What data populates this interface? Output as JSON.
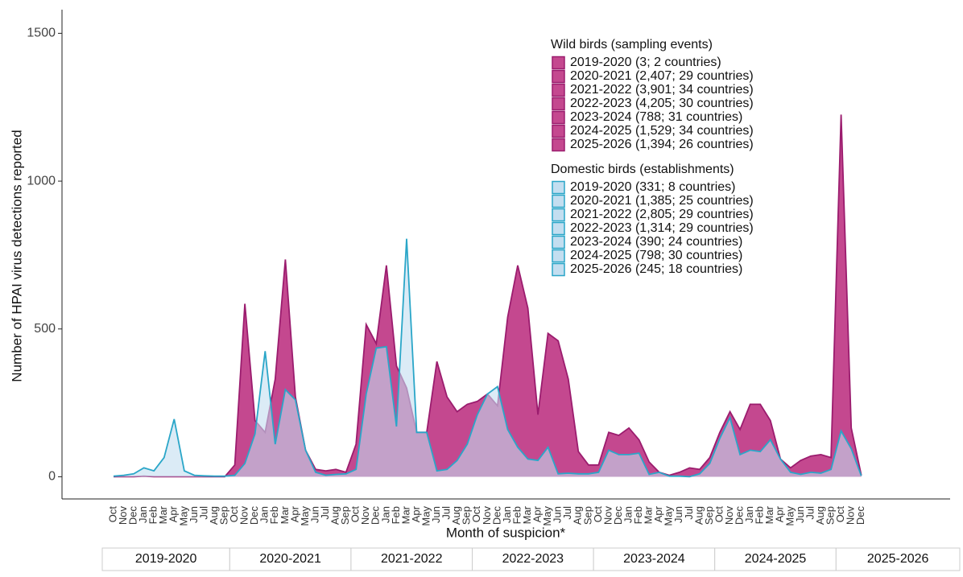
{
  "chart_data": {
    "type": "area",
    "x_label": "Month of suspicion*",
    "y_label": "Number of HPAI virus detections reported",
    "categories": [
      "Oct",
      "Nov",
      "Dec",
      "Jan",
      "Feb",
      "Mar",
      "Apr",
      "May",
      "Jun",
      "Jul",
      "Aug",
      "Sep",
      "Oct",
      "Nov",
      "Dec",
      "Jan",
      "Feb",
      "Mar",
      "Apr",
      "May",
      "Jun",
      "Jul",
      "Aug",
      "Sep",
      "Oct",
      "Nov",
      "Dec",
      "Jan",
      "Feb",
      "Mar",
      "Apr",
      "May",
      "Jun",
      "Jul",
      "Aug",
      "Sep",
      "Oct",
      "Nov",
      "Dec",
      "Jan",
      "Feb",
      "Mar",
      "Apr",
      "May",
      "Jun",
      "Jul",
      "Aug",
      "Sep",
      "Oct",
      "Nov",
      "Dec",
      "Jan",
      "Feb",
      "Mar",
      "Apr",
      "May",
      "Jun",
      "Jul",
      "Aug",
      "Sep",
      "Oct",
      "Nov",
      "Dec",
      "Jan",
      "Feb",
      "Mar",
      "Apr",
      "May",
      "Jun",
      "Jul",
      "Aug",
      "Sep",
      "Oct",
      "Nov",
      "Dec"
    ],
    "seasons": [
      "2019-2020",
      "2020-2021",
      "2021-2022",
      "2022-2023",
      "2023-2024",
      "2024-2025",
      "2025-2026"
    ],
    "ylim": [
      -75,
      1580
    ],
    "yticks": [
      0,
      500,
      1000,
      1500
    ],
    "series": [
      {
        "name": "Wild birds (sampling events)",
        "color": "#c4488f",
        "stroke": "#9b1c6e",
        "legend_entries": [
          "2019-2020 (3; 2 countries)",
          "2020-2021 (2,407; 29 countries)",
          "2021-2022 (3,901; 34 countries)",
          "2022-2023 (4,205; 30 countries)",
          "2023-2024 (788; 31 countries)",
          "2024-2025 (1,529; 34 countries)",
          "2025-2026 (1,394; 26 countries)"
        ],
        "values": [
          0,
          0,
          0,
          2,
          0,
          0,
          0,
          0,
          0,
          0,
          0,
          0,
          40,
          585,
          190,
          150,
          330,
          735,
          270,
          90,
          25,
          20,
          25,
          15,
          110,
          515,
          450,
          715,
          375,
          300,
          150,
          150,
          390,
          270,
          220,
          245,
          255,
          280,
          240,
          540,
          715,
          570,
          210,
          485,
          460,
          330,
          85,
          40,
          40,
          150,
          140,
          165,
          125,
          50,
          15,
          5,
          15,
          30,
          25,
          65,
          150,
          220,
          160,
          245,
          245,
          190,
          60,
          30,
          55,
          70,
          75,
          65,
          1225,
          165,
          5
        ]
      },
      {
        "name": "Domestic birds (establishments)",
        "color": "#c3def0",
        "stroke": "#2aa6c8",
        "legend_entries": [
          "2019-2020 (331; 8 countries)",
          "2020-2021 (1,385; 25 countries)",
          "2021-2022 (2,805; 29 countries)",
          "2022-2023 (1,314; 29 countries)",
          "2023-2024 (390; 24 countries)",
          "2024-2025 (798; 30 countries)",
          "2025-2026 (245; 18 countries)"
        ],
        "values": [
          2,
          5,
          10,
          30,
          20,
          65,
          195,
          20,
          5,
          3,
          2,
          2,
          5,
          45,
          145,
          425,
          110,
          295,
          260,
          90,
          15,
          5,
          8,
          10,
          25,
          280,
          435,
          440,
          170,
          805,
          150,
          150,
          20,
          25,
          55,
          110,
          210,
          280,
          305,
          160,
          100,
          60,
          55,
          100,
          10,
          12,
          10,
          10,
          15,
          90,
          75,
          75,
          80,
          8,
          15,
          2,
          2,
          0,
          10,
          45,
          130,
          200,
          75,
          90,
          85,
          125,
          60,
          15,
          8,
          15,
          12,
          25,
          155,
          95,
          3
        ]
      }
    ]
  }
}
